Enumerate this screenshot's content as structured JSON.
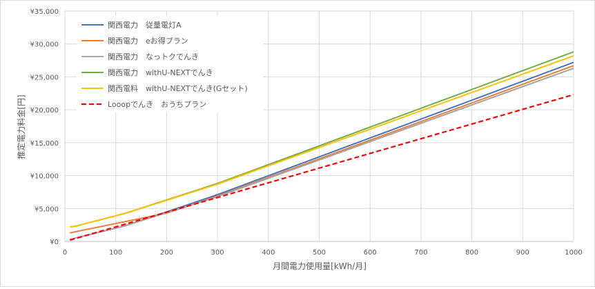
{
  "chart_data": {
    "type": "line",
    "title": "",
    "xlabel": "月間電力使用量[kWh/月]",
    "ylabel": "推定電力料金[円]",
    "xlim": [
      0,
      1000
    ],
    "ylim": [
      0,
      35000
    ],
    "x_ticks": [
      0,
      100,
      200,
      300,
      400,
      500,
      600,
      700,
      800,
      900,
      1000
    ],
    "y_ticks": [
      0,
      5000,
      10000,
      15000,
      20000,
      25000,
      30000,
      35000
    ],
    "x_tick_labels": [
      "0",
      "100",
      "200",
      "300",
      "400",
      "500",
      "600",
      "700",
      "800",
      "900",
      "1000"
    ],
    "y_tick_labels": [
      "¥0",
      "¥5,000",
      "¥10,000",
      "¥15,000",
      "¥20,000",
      "¥25,000",
      "¥30,000",
      "¥35,000"
    ],
    "grid": true,
    "legend_position": "top-left",
    "series": [
      {
        "name": "関西電力　従量電灯A",
        "color": "#4472c4",
        "dash": "solid",
        "x": [
          10,
          15,
          120,
          300,
          1000
        ],
        "y": [
          300,
          400,
          2400,
          7100,
          27200
        ]
      },
      {
        "name": "関西電力　eお得プラン",
        "color": "#ed7d31",
        "dash": "solid",
        "x": [
          10,
          200,
          300,
          1000
        ],
        "y": [
          1300,
          4300,
          6900,
          26700
        ]
      },
      {
        "name": "関西電力　なっトクでんき",
        "color": "#a5a5a5",
        "dash": "solid",
        "x": [
          10,
          15,
          120,
          300,
          1000
        ],
        "y": [
          300,
          400,
          2400,
          6800,
          26300
        ]
      },
      {
        "name": "関西電力　withU-NEXTでんき",
        "color": "#70ad47",
        "dash": "solid",
        "x": [
          10,
          20,
          120,
          300,
          1000
        ],
        "y": [
          2200,
          2300,
          4300,
          8800,
          28800
        ]
      },
      {
        "name": "関西電料　withU-NEXTでんき(Gセット)",
        "color": "#ffc000",
        "dash": "solid",
        "x": [
          10,
          20,
          120,
          300,
          1000
        ],
        "y": [
          2200,
          2300,
          4300,
          8700,
          28200
        ]
      },
      {
        "name": "Looopでんき　おうちプラン",
        "color": "#ff0000",
        "dash": "dashed",
        "x": [
          10,
          1000
        ],
        "y": [
          200,
          22300
        ]
      }
    ]
  }
}
